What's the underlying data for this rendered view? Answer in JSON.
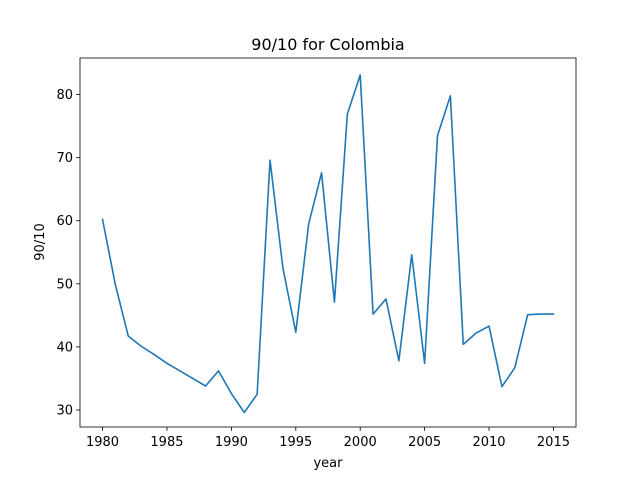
{
  "chart_data": {
    "type": "line",
    "title": "90/10 for Colombia",
    "xlabel": "year",
    "ylabel": "90/10",
    "xlim": [
      1978.25,
      2016.75
    ],
    "ylim": [
      27.3,
      85.8
    ],
    "xticks": [
      1980,
      1985,
      1990,
      1995,
      2000,
      2005,
      2010,
      2015
    ],
    "yticks": [
      30,
      40,
      50,
      60,
      70,
      80
    ],
    "grid": false,
    "legend": "none",
    "series": [
      {
        "color": "#1f77b4",
        "x": [
          1980,
          1981,
          1982,
          1983,
          1984,
          1985,
          1986,
          1987,
          1988,
          1989,
          1990,
          1991,
          1992,
          1993,
          1994,
          1995,
          1996,
          1997,
          1998,
          1999,
          2000,
          2001,
          2002,
          2003,
          2004,
          2005,
          2006,
          2007,
          2008,
          2009,
          2010,
          2011,
          2012,
          2013,
          2014,
          2015
        ],
        "values": [
          60.2,
          49.8,
          41.7,
          40.1,
          38.8,
          37.4,
          36.2,
          35.0,
          33.8,
          36.2,
          32.6,
          29.6,
          32.5,
          69.6,
          52.5,
          42.3,
          59.5,
          67.6,
          47.1,
          76.9,
          83.1,
          45.2,
          47.6,
          37.8,
          54.6,
          37.4,
          73.5,
          79.8,
          40.4,
          42.2,
          43.3,
          33.7,
          36.7,
          45.1,
          45.2,
          45.2
        ]
      }
    ]
  }
}
